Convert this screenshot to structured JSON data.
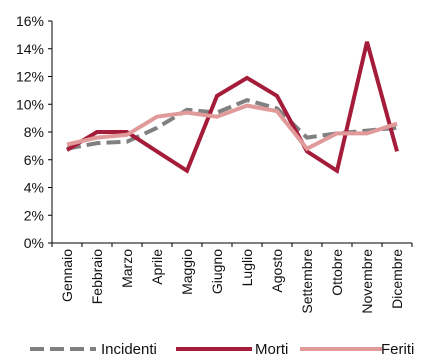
{
  "chart_data": {
    "type": "line",
    "title": "",
    "xlabel": "",
    "ylabel": "",
    "categories": [
      "Gennaio",
      "Febbraio",
      "Marzo",
      "Aprile",
      "Maggio",
      "Giugno",
      "Luglio",
      "Agosto",
      "Settembre",
      "Ottobre",
      "Novembre",
      "Dicembre"
    ],
    "ylim": [
      0,
      16
    ],
    "yticks": [
      0,
      2,
      4,
      6,
      8,
      10,
      12,
      14,
      16
    ],
    "ytick_labels": [
      "0%",
      "2%",
      "4%",
      "6%",
      "8%",
      "10%",
      "12%",
      "14%",
      "16%"
    ],
    "grid": false,
    "legend_position": "bottom",
    "series": [
      {
        "name": "Incidenti",
        "values": [
          6.8,
          7.2,
          7.3,
          8.3,
          9.6,
          9.4,
          10.3,
          9.7,
          7.6,
          7.9,
          8.1,
          8.3
        ],
        "color": "#808080",
        "style": "dashed"
      },
      {
        "name": "Morti",
        "values": [
          6.7,
          8.0,
          8.0,
          6.6,
          5.2,
          10.6,
          11.9,
          10.6,
          6.6,
          5.2,
          14.5,
          6.6
        ],
        "color": "#a51c3a",
        "style": "solid"
      },
      {
        "name": "Feriti",
        "values": [
          7.1,
          7.6,
          7.8,
          9.1,
          9.4,
          9.1,
          9.9,
          9.5,
          6.8,
          7.9,
          7.9,
          8.6
        ],
        "color": "#e19a9a",
        "style": "solid"
      }
    ]
  }
}
